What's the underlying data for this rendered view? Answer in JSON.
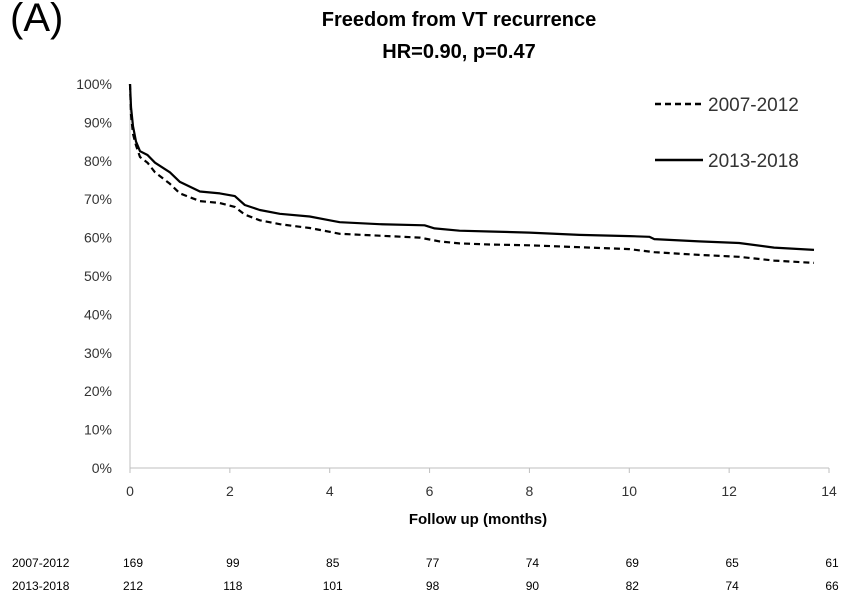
{
  "panel_label": "(A)",
  "chart_data": {
    "type": "line",
    "title": "Freedom from VT recurrence",
    "subtitle": "HR=0.90, p=0.47",
    "xlabel": "Follow up (months)",
    "ylabel": "",
    "xlim": [
      0,
      14
    ],
    "ylim": [
      0,
      100
    ],
    "x_ticks": [
      "0",
      "2",
      "4",
      "6",
      "8",
      "10",
      "12",
      "14"
    ],
    "y_ticks": [
      "0%",
      "10%",
      "20%",
      "30%",
      "40%",
      "50%",
      "60%",
      "70%",
      "80%",
      "90%",
      "100%"
    ],
    "grid": false,
    "legend_position": "top-right",
    "series": [
      {
        "name": "2007-2012",
        "style": "dashed",
        "color": "#000000",
        "points": [
          [
            0,
            100
          ],
          [
            0.02,
            92
          ],
          [
            0.06,
            87
          ],
          [
            0.12,
            84
          ],
          [
            0.2,
            81
          ],
          [
            0.35,
            79.5
          ],
          [
            0.5,
            77
          ],
          [
            0.8,
            74
          ],
          [
            1.0,
            71.5
          ],
          [
            1.4,
            69.5
          ],
          [
            1.8,
            69
          ],
          [
            2.1,
            68
          ],
          [
            2.3,
            66
          ],
          [
            2.6,
            64.5
          ],
          [
            3.0,
            63.5
          ],
          [
            3.6,
            62.5
          ],
          [
            4.0,
            61.5
          ],
          [
            4.2,
            61
          ],
          [
            5.0,
            60.5
          ],
          [
            5.8,
            60
          ],
          [
            6.2,
            59
          ],
          [
            6.6,
            58.5
          ],
          [
            7.2,
            58.2
          ],
          [
            8.0,
            58
          ],
          [
            9.0,
            57.5
          ],
          [
            10.0,
            57
          ],
          [
            10.5,
            56.2
          ],
          [
            11.4,
            55.5
          ],
          [
            12.2,
            55
          ],
          [
            12.9,
            54
          ],
          [
            13.7,
            53.4
          ]
        ]
      },
      {
        "name": "2013-2018",
        "style": "solid",
        "color": "#000000",
        "points": [
          [
            0,
            100
          ],
          [
            0.02,
            94
          ],
          [
            0.06,
            89
          ],
          [
            0.12,
            85
          ],
          [
            0.2,
            82.5
          ],
          [
            0.35,
            81.5
          ],
          [
            0.5,
            79.5
          ],
          [
            0.8,
            77
          ],
          [
            1.0,
            74.5
          ],
          [
            1.4,
            72
          ],
          [
            1.8,
            71.5
          ],
          [
            2.1,
            70.8
          ],
          [
            2.3,
            68.5
          ],
          [
            2.6,
            67.2
          ],
          [
            3.0,
            66.2
          ],
          [
            3.6,
            65.5
          ],
          [
            4.0,
            64.5
          ],
          [
            4.2,
            64
          ],
          [
            5.0,
            63.5
          ],
          [
            5.9,
            63.2
          ],
          [
            6.1,
            62.4
          ],
          [
            6.6,
            61.8
          ],
          [
            7.2,
            61.6
          ],
          [
            8.0,
            61.3
          ],
          [
            9.0,
            60.7
          ],
          [
            10.0,
            60.4
          ],
          [
            10.4,
            60.2
          ],
          [
            10.5,
            59.6
          ],
          [
            11.4,
            59
          ],
          [
            12.2,
            58.6
          ],
          [
            12.9,
            57.4
          ],
          [
            13.7,
            56.8
          ]
        ]
      }
    ],
    "risk_table": {
      "rows": [
        {
          "label": "2007-2012",
          "values": [
            "169",
            "99",
            "85",
            "77",
            "74",
            "69",
            "65",
            "61"
          ]
        },
        {
          "label": "2013-2018",
          "values": [
            "212",
            "118",
            "101",
            "98",
            "90",
            "82",
            "74",
            "66"
          ]
        }
      ]
    }
  }
}
